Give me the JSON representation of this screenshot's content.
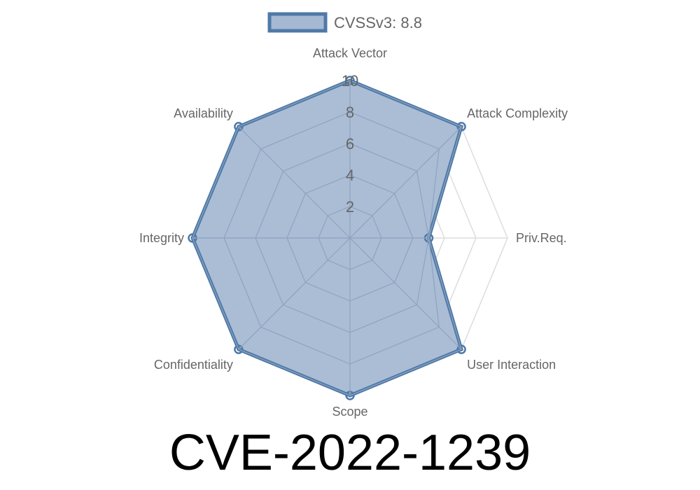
{
  "chart_data": {
    "type": "radar",
    "title": "CVE-2022-1239",
    "axes": [
      "Attack Vector",
      "Attack Complexity",
      "Priv.Req.",
      "User Interaction",
      "Scope",
      "Confidentiality",
      "Integrity",
      "Availability"
    ],
    "series": [
      {
        "name": "CVSSv3: 8.8",
        "values": [
          10,
          10,
          5,
          10,
          10,
          10,
          10,
          10
        ]
      }
    ],
    "rlim": [
      0,
      10
    ],
    "ticks": [
      "2",
      "4",
      "6",
      "8",
      "10"
    ],
    "tick_values": [
      2,
      4,
      6,
      8,
      10
    ],
    "grid": true,
    "legend_position": "top",
    "colors": {
      "stroke": "#4e79a7",
      "fill": "#a5b9d3",
      "grid": "#dddddd",
      "text": "#666666"
    }
  }
}
